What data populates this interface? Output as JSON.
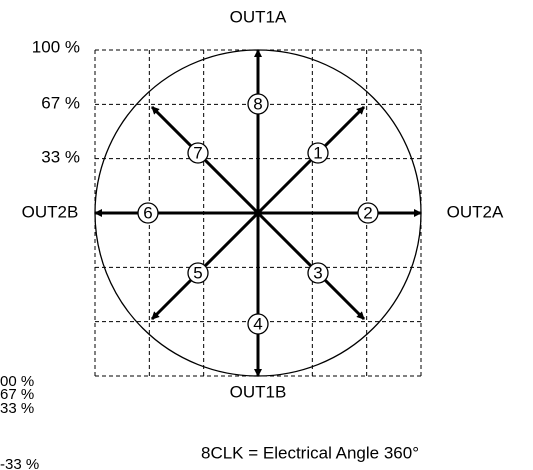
{
  "axes": {
    "top": "OUT1A",
    "bottom": "OUT1B",
    "left": "OUT2B",
    "right": "OUT2A"
  },
  "levels": [
    "100 %",
    "67 %",
    "33 %"
  ],
  "side_levels": [
    "00 %",
    "67 %",
    "33 %",
    "-33 %"
  ],
  "steps": [
    "1",
    "2",
    "3",
    "4",
    "5",
    "6",
    "7",
    "8"
  ],
  "caption": "8CLK = Electrical Angle 360°"
}
